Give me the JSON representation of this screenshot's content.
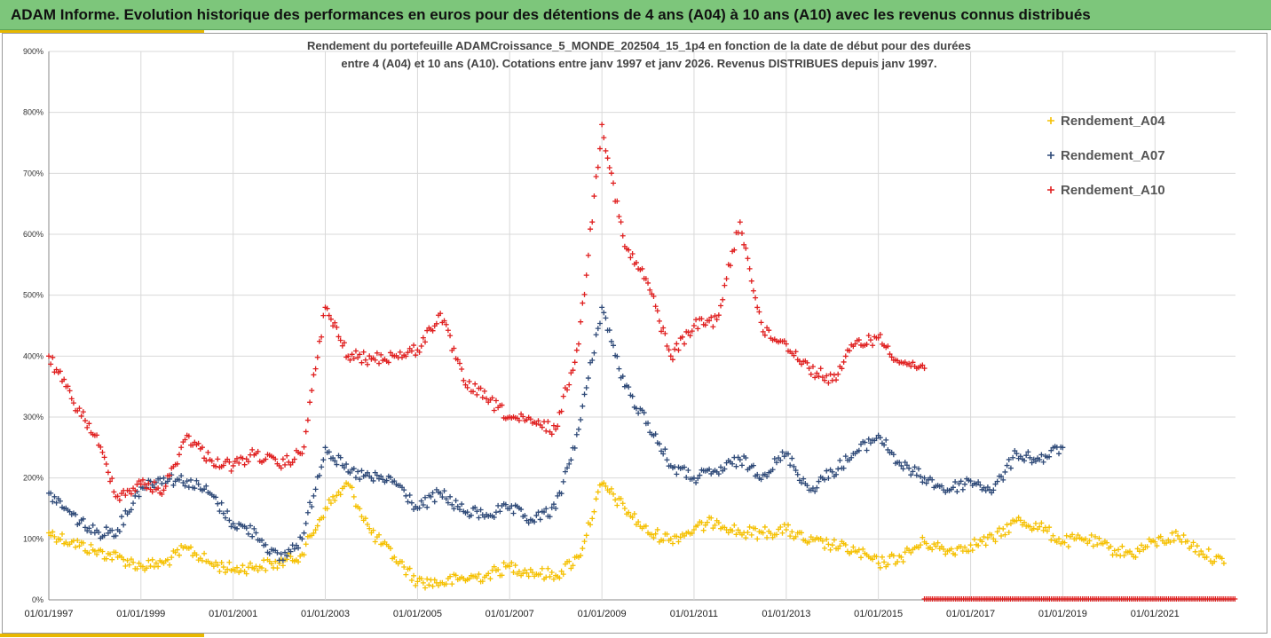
{
  "banner": {
    "title": "ADAM Informe. Evolution historique des performances en euros pour des détentions de 4 ans (A04) à 10 ans (A10) avec les revenus connus distribués"
  },
  "colors": {
    "banner_bg": "#7dc67b",
    "accent_gold": "#e8b800",
    "A04": "#f5c000",
    "A07": "#2f4a78",
    "A10": "#e02020"
  },
  "chart_data": {
    "type": "scatter",
    "subtitle_lines": [
      "Rendement du portefeuille ADAMCroissance_5_MONDE_202504_15_1p4  en fonction de la date de début pour des durées",
      "entre 4 (A04) et 10 ans (A10). Cotations entre janv 1997 et janv 2026. Revenus DISTRIBUES depuis janv 1997."
    ],
    "xlabel": "",
    "ylabel": "",
    "x_range": [
      "1997-01-01",
      "2022-10-01"
    ],
    "ylim": [
      0,
      900
    ],
    "y_ticks": [
      "0%",
      "100%",
      "200%",
      "300%",
      "400%",
      "500%",
      "600%",
      "700%",
      "800%",
      "900%"
    ],
    "x_ticks": [
      "01/01/1997",
      "01/01/1999",
      "01/01/2001",
      "01/01/2003",
      "01/01/2005",
      "01/01/2007",
      "01/01/2009",
      "01/01/2011",
      "01/01/2013",
      "01/01/2015",
      "01/01/2017",
      "01/01/2019",
      "01/01/2021"
    ],
    "grid": true,
    "legend_position": "top-right",
    "marker": "+",
    "series": [
      {
        "name": "Rendement_A04",
        "color": "#f5c000",
        "x": [
          "1997-01",
          "1997-07",
          "1998-01",
          "1998-07",
          "1999-01",
          "1999-07",
          "2000-01",
          "2000-07",
          "2001-01",
          "2001-07",
          "2002-01",
          "2002-07",
          "2003-01",
          "2003-07",
          "2004-01",
          "2004-07",
          "2005-01",
          "2005-07",
          "2006-01",
          "2006-07",
          "2007-01",
          "2007-07",
          "2008-01",
          "2008-07",
          "2009-01",
          "2009-07",
          "2010-01",
          "2010-07",
          "2011-01",
          "2011-07",
          "2012-01",
          "2012-07",
          "2013-01",
          "2013-07",
          "2014-01",
          "2014-07",
          "2015-01",
          "2015-07",
          "2016-01",
          "2016-07",
          "2017-01",
          "2017-07",
          "2018-01",
          "2018-07",
          "2019-01",
          "2019-07",
          "2020-01",
          "2020-07",
          "2021-01",
          "2021-07",
          "2022-01",
          "2022-07"
        ],
        "y": [
          110,
          95,
          80,
          70,
          55,
          60,
          85,
          60,
          50,
          55,
          60,
          75,
          150,
          190,
          110,
          70,
          30,
          28,
          35,
          40,
          55,
          45,
          40,
          70,
          190,
          150,
          110,
          100,
          115,
          130,
          110,
          110,
          115,
          95,
          90,
          80,
          60,
          70,
          95,
          80,
          90,
          100,
          130,
          120,
          95,
          100,
          85,
          75,
          95,
          105,
          80,
          60
        ]
      },
      {
        "name": "Rendement_A07",
        "color": "#2f4a78",
        "x": [
          "1997-01",
          "1997-07",
          "1998-01",
          "1998-07",
          "1999-01",
          "1999-07",
          "2000-01",
          "2000-07",
          "2001-01",
          "2001-07",
          "2002-01",
          "2002-07",
          "2003-01",
          "2003-07",
          "2004-01",
          "2004-07",
          "2005-01",
          "2005-07",
          "2006-01",
          "2006-07",
          "2007-01",
          "2007-07",
          "2008-01",
          "2008-07",
          "2009-01",
          "2009-07",
          "2010-01",
          "2010-07",
          "2011-01",
          "2011-07",
          "2012-01",
          "2012-07",
          "2013-01",
          "2013-07",
          "2014-01",
          "2014-07",
          "2015-01",
          "2015-07",
          "2016-01",
          "2016-07",
          "2017-01",
          "2017-07",
          "2018-01",
          "2018-07",
          "2019-01"
        ],
        "y": [
          175,
          140,
          110,
          115,
          185,
          200,
          195,
          175,
          125,
          110,
          65,
          100,
          250,
          210,
          200,
          195,
          150,
          175,
          145,
          140,
          150,
          130,
          150,
          280,
          480,
          350,
          290,
          220,
          200,
          210,
          230,
          205,
          240,
          180,
          210,
          240,
          270,
          220,
          200,
          180,
          195,
          180,
          240,
          230,
          250
        ]
      },
      {
        "name": "Rendement_A10",
        "color": "#e02020",
        "x": [
          "1997-01",
          "1997-07",
          "1998-01",
          "1998-07",
          "1999-01",
          "1999-07",
          "2000-01",
          "2000-07",
          "2001-01",
          "2001-07",
          "2002-01",
          "2002-07",
          "2003-01",
          "2003-07",
          "2004-01",
          "2004-07",
          "2005-01",
          "2005-07",
          "2006-01",
          "2006-07",
          "2007-01",
          "2007-07",
          "2008-01",
          "2008-07",
          "2009-01",
          "2009-07",
          "2010-01",
          "2010-07",
          "2011-01",
          "2011-07",
          "2012-01",
          "2012-07",
          "2013-01",
          "2013-07",
          "2014-01",
          "2014-07",
          "2015-01",
          "2015-07",
          "2016-01"
        ],
        "y": [
          400,
          330,
          270,
          170,
          190,
          180,
          270,
          230,
          220,
          240,
          220,
          240,
          480,
          400,
          395,
          400,
          410,
          470,
          360,
          330,
          300,
          290,
          280,
          420,
          780,
          580,
          520,
          400,
          450,
          460,
          620,
          440,
          420,
          380,
          360,
          420,
          430,
          390,
          380
        ]
      },
      {
        "name": "",
        "color": "#e02020",
        "x_range": [
          "2016-01-01",
          "2022-10-01"
        ],
        "y_constant": 0,
        "note_marker_density": "dense"
      }
    ]
  },
  "legend": {
    "items": [
      "Rendement_A04",
      "Rendement_A07",
      "Rendement_A10"
    ]
  }
}
